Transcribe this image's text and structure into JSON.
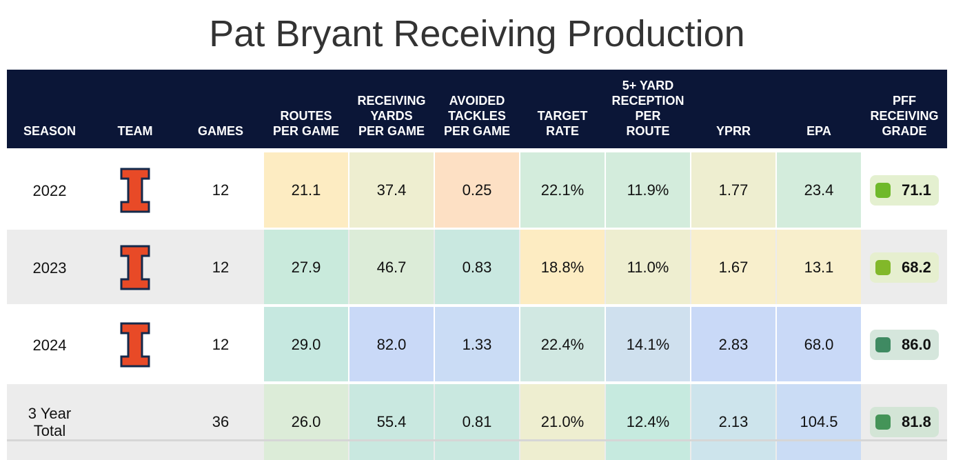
{
  "title": "Pat Bryant Receiving Production",
  "columns": [
    {
      "key": "season",
      "label": "SEASON"
    },
    {
      "key": "team",
      "label": "TEAM"
    },
    {
      "key": "games",
      "label": "GAMES"
    },
    {
      "key": "routes",
      "label": "ROUTES PER GAME"
    },
    {
      "key": "yards",
      "label": "RECEIVING YARDS PER GAME"
    },
    {
      "key": "tackles",
      "label": "AVOIDED TACKLES PER GAME"
    },
    {
      "key": "target",
      "label": "TARGET RATE"
    },
    {
      "key": "recep",
      "label": "5+ YARD RECEPTION PER ROUTE"
    },
    {
      "key": "yprr",
      "label": "YPRR"
    },
    {
      "key": "epa",
      "label": "EPA"
    },
    {
      "key": "grade",
      "label": "PFF RECEIVING GRADE"
    }
  ],
  "colors": {
    "header_bg": "#0b1637",
    "logo_orange": "#e84a27",
    "logo_navy": "#13294b"
  },
  "chart_data": {
    "type": "table",
    "title": "Pat Bryant Receiving Production",
    "rows": [
      {
        "season": "2022",
        "team": "illinois-logo",
        "games": "12",
        "cells": {
          "routes": {
            "value": "21.1",
            "color": "#fdecc2"
          },
          "yards": {
            "value": "37.4",
            "color": "#eeeed0"
          },
          "tackles": {
            "value": "0.25",
            "color": "#fde0c4"
          },
          "target": {
            "value": "22.1%",
            "color": "#d3ecdc"
          },
          "recep": {
            "value": "11.9%",
            "color": "#d3ecdc"
          },
          "yprr": {
            "value": "1.77",
            "color": "#eeeed0"
          },
          "epa": {
            "value": "23.4",
            "color": "#d3ecdc"
          }
        },
        "grade": {
          "value": "71.1",
          "dot": "#6fb92b",
          "bg": "#e4f0d0"
        },
        "row_bg": "#ffffff"
      },
      {
        "season": "2023",
        "team": "illinois-logo",
        "games": "12",
        "cells": {
          "routes": {
            "value": "27.9",
            "color": "#c9eadc"
          },
          "yards": {
            "value": "46.7",
            "color": "#dcecd8"
          },
          "tackles": {
            "value": "0.83",
            "color": "#c9e8e0"
          },
          "target": {
            "value": "18.8%",
            "color": "#fdecc2"
          },
          "recep": {
            "value": "11.0%",
            "color": "#eeeed0"
          },
          "yprr": {
            "value": "1.67",
            "color": "#f8efcc"
          },
          "epa": {
            "value": "13.1",
            "color": "#f8efcc"
          }
        },
        "grade": {
          "value": "68.2",
          "dot": "#82b82a",
          "bg": "#e6efcf"
        },
        "row_bg": "#ececec"
      },
      {
        "season": "2024",
        "team": "illinois-logo",
        "games": "12",
        "cells": {
          "routes": {
            "value": "29.0",
            "color": "#c6e8e0"
          },
          "yards": {
            "value": "82.0",
            "color": "#c9d9f7"
          },
          "tackles": {
            "value": "1.33",
            "color": "#cadcf5"
          },
          "target": {
            "value": "22.4%",
            "color": "#d1e8e2"
          },
          "recep": {
            "value": "14.1%",
            "color": "#cfe0ee"
          },
          "yprr": {
            "value": "2.83",
            "color": "#c9d9f7"
          },
          "epa": {
            "value": "68.0",
            "color": "#c9d9f7"
          }
        },
        "grade": {
          "value": "86.0",
          "dot": "#3f8a62",
          "bg": "#d5e6dc"
        },
        "row_bg": "#ffffff"
      },
      {
        "season": "3 Year Total",
        "team": "",
        "games": "36",
        "cells": {
          "routes": {
            "value": "26.0",
            "color": "#dcecd8"
          },
          "yards": {
            "value": "55.4",
            "color": "#c9e8e0"
          },
          "tackles": {
            "value": "0.81",
            "color": "#c9e8e0"
          },
          "target": {
            "value": "21.0%",
            "color": "#eeeed0"
          },
          "recep": {
            "value": "12.4%",
            "color": "#c6eadf"
          },
          "yprr": {
            "value": "2.13",
            "color": "#cde4ec"
          },
          "epa": {
            "value": "104.5",
            "color": "#cadcf5"
          }
        },
        "grade": {
          "value": "81.8",
          "dot": "#449458",
          "bg": "#d3e5d6"
        },
        "row_bg": "#ececec"
      }
    ]
  }
}
